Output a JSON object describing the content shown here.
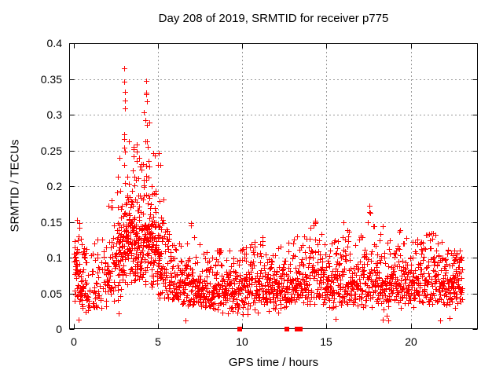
{
  "chart_data": {
    "type": "scatter",
    "title": "Day 208 of 2019, SRMTID for receiver p775",
    "xlabel": "GPS time / hours",
    "ylabel": "SRMTID / TECUs",
    "xlim": [
      0,
      24
    ],
    "ylim": [
      0,
      0.4
    ],
    "x_ticks": [
      0,
      5,
      10,
      15,
      20
    ],
    "y_ticks": [
      0,
      0.05,
      0.1,
      0.15,
      0.2,
      0.25,
      0.3,
      0.35,
      0.4
    ],
    "grid": true,
    "legend": "none",
    "marker": "plus",
    "marker_color": "#ff0000",
    "grid_color": "#999999",
    "axis_color": "#000000",
    "series_name": "SRMTID",
    "time_range_hours": [
      0.02,
      23.05
    ],
    "n_points": 2000,
    "seed": 20190208,
    "envelope": {
      "comment": "hourly envelope of the dense scatter band read from the plot: median and max SRMTID (TECUs) vs GPS hour",
      "hours": [
        0.0,
        0.3,
        0.8,
        1.3,
        1.8,
        2.3,
        2.7,
        3.0,
        3.4,
        3.8,
        4.1,
        4.35,
        4.6,
        4.9,
        5.1,
        5.5,
        5.9,
        6.4,
        6.9,
        7.2,
        7.8,
        8.5,
        9.2,
        9.9,
        10.6,
        11.3,
        12.0,
        12.7,
        13.3,
        13.9,
        14.4,
        14.9,
        15.4,
        16.0,
        16.8,
        17.3,
        17.6,
        18.1,
        18.6,
        19.3,
        20.0,
        20.7,
        21.4,
        21.9,
        22.4,
        22.9,
        23.05
      ],
      "median": [
        0.085,
        0.07,
        0.055,
        0.055,
        0.06,
        0.075,
        0.1,
        0.125,
        0.13,
        0.125,
        0.135,
        0.14,
        0.12,
        0.11,
        0.1,
        0.08,
        0.068,
        0.062,
        0.068,
        0.06,
        0.055,
        0.052,
        0.053,
        0.055,
        0.06,
        0.063,
        0.06,
        0.06,
        0.062,
        0.068,
        0.078,
        0.07,
        0.062,
        0.065,
        0.063,
        0.07,
        0.075,
        0.07,
        0.062,
        0.06,
        0.06,
        0.065,
        0.07,
        0.065,
        0.065,
        0.072,
        0.075
      ],
      "max": [
        0.16,
        0.15,
        0.12,
        0.12,
        0.15,
        0.19,
        0.27,
        0.37,
        0.25,
        0.28,
        0.3,
        0.35,
        0.25,
        0.24,
        0.25,
        0.14,
        0.12,
        0.12,
        0.15,
        0.13,
        0.11,
        0.11,
        0.11,
        0.11,
        0.12,
        0.13,
        0.12,
        0.12,
        0.13,
        0.14,
        0.15,
        0.13,
        0.12,
        0.15,
        0.12,
        0.14,
        0.17,
        0.165,
        0.12,
        0.14,
        0.12,
        0.13,
        0.135,
        0.12,
        0.11,
        0.11,
        0.105
      ]
    },
    "notable_points": [
      [
        3.02,
        0.365
      ],
      [
        3.02,
        0.346
      ],
      [
        3.03,
        0.332
      ],
      [
        3.04,
        0.32
      ],
      [
        3.05,
        0.309
      ],
      [
        3.0,
        0.272
      ],
      [
        3.01,
        0.266
      ],
      [
        2.98,
        0.254
      ],
      [
        3.06,
        0.248
      ],
      [
        3.0,
        0.23
      ],
      [
        4.3,
        0.347
      ],
      [
        4.32,
        0.331
      ],
      [
        4.29,
        0.329
      ],
      [
        4.34,
        0.319
      ],
      [
        4.27,
        0.292
      ],
      [
        4.35,
        0.286
      ],
      [
        4.15,
        0.303
      ],
      [
        4.42,
        0.255
      ],
      [
        4.45,
        0.235
      ],
      [
        4.5,
        0.228
      ],
      [
        3.55,
        0.252
      ],
      [
        3.73,
        0.248
      ],
      [
        5.05,
        0.246
      ],
      [
        5.02,
        0.23
      ],
      [
        2.72,
        0.24
      ],
      [
        0.22,
        0.153
      ],
      [
        0.35,
        0.148
      ],
      [
        6.95,
        0.148
      ],
      [
        14.35,
        0.152
      ],
      [
        16.02,
        0.15
      ],
      [
        17.55,
        0.172
      ],
      [
        17.6,
        0.163
      ],
      [
        19.35,
        0.138
      ],
      [
        21.45,
        0.132
      ]
    ],
    "flag_squares_hours": [
      9.87,
      12.67,
      13.25,
      13.45
    ],
    "flag_square_value": 0
  }
}
